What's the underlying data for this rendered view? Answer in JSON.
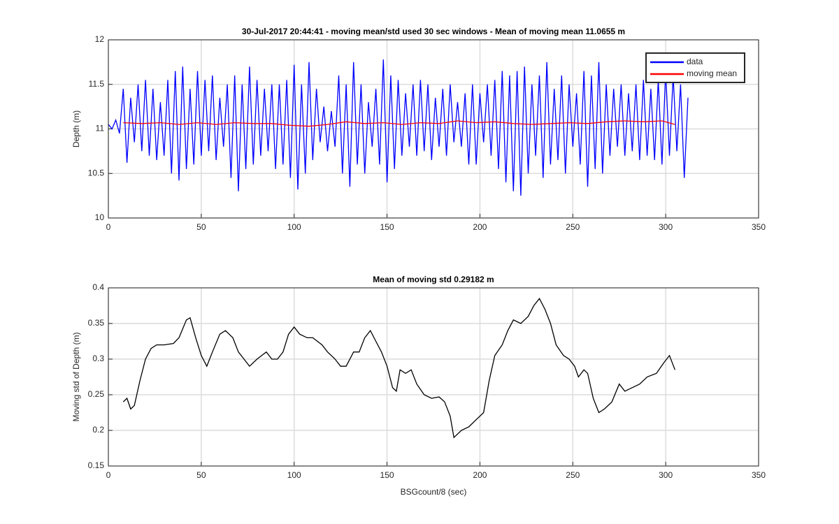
{
  "chart_data": [
    {
      "type": "line",
      "title": "30-Jul-2017 20:44:41 - moving mean/std used 30 sec windows - Mean of moving mean 11.0655 m",
      "y_label": "Depth (m)",
      "xlim": [
        0,
        350
      ],
      "xticks": [
        0,
        50,
        100,
        150,
        200,
        250,
        300,
        350
      ],
      "ylim": [
        10,
        12
      ],
      "yticks": [
        10,
        10.5,
        11,
        11.5,
        12
      ],
      "grid": true,
      "legend": "upper right",
      "series": [
        {
          "name": "data",
          "color": "#0000ff",
          "x": [
            0,
            2,
            4,
            6,
            8,
            10,
            12,
            14,
            16,
            18,
            20,
            22,
            24,
            26,
            28,
            30,
            32,
            34,
            36,
            38,
            40,
            42,
            44,
            46,
            48,
            50,
            52,
            54,
            56,
            58,
            60,
            62,
            64,
            66,
            68,
            70,
            72,
            74,
            76,
            78,
            80,
            82,
            84,
            86,
            88,
            90,
            92,
            94,
            96,
            98,
            100,
            102,
            104,
            106,
            108,
            110,
            112,
            114,
            116,
            118,
            120,
            122,
            124,
            126,
            128,
            130,
            132,
            134,
            136,
            138,
            140,
            142,
            144,
            146,
            148,
            150,
            152,
            154,
            156,
            158,
            160,
            162,
            164,
            166,
            168,
            170,
            172,
            174,
            176,
            178,
            180,
            182,
            184,
            186,
            188,
            190,
            192,
            194,
            196,
            198,
            200,
            202,
            204,
            206,
            208,
            210,
            212,
            214,
            216,
            218,
            220,
            222,
            224,
            226,
            228,
            230,
            232,
            234,
            236,
            238,
            240,
            242,
            244,
            246,
            248,
            250,
            252,
            254,
            256,
            258,
            260,
            262,
            264,
            266,
            268,
            270,
            272,
            274,
            276,
            278,
            280,
            282,
            284,
            286,
            288,
            290,
            292,
            294,
            296,
            298,
            300,
            302,
            304,
            306,
            308,
            310,
            312
          ],
          "values": [
            11.05,
            11.0,
            11.1,
            10.95,
            11.45,
            10.62,
            11.35,
            10.85,
            11.5,
            10.75,
            11.55,
            10.7,
            11.45,
            10.65,
            11.3,
            10.7,
            11.55,
            10.5,
            11.65,
            10.42,
            11.7,
            10.55,
            11.45,
            10.6,
            11.65,
            10.7,
            11.55,
            10.75,
            11.6,
            10.65,
            11.35,
            10.8,
            11.5,
            10.45,
            11.6,
            10.3,
            11.5,
            10.55,
            11.7,
            10.6,
            11.55,
            10.7,
            11.45,
            10.75,
            11.5,
            10.55,
            11.5,
            10.6,
            11.55,
            10.45,
            11.72,
            10.32,
            11.5,
            10.5,
            11.75,
            10.65,
            11.45,
            10.85,
            11.25,
            10.75,
            11.2,
            10.8,
            11.6,
            10.5,
            11.5,
            10.35,
            11.75,
            10.6,
            11.5,
            10.5,
            11.3,
            10.8,
            11.45,
            10.6,
            11.78,
            10.4,
            11.6,
            10.55,
            11.55,
            10.7,
            11.4,
            10.8,
            11.5,
            10.7,
            11.55,
            10.75,
            11.5,
            10.65,
            11.35,
            10.8,
            11.45,
            10.7,
            11.5,
            10.85,
            11.3,
            10.8,
            11.4,
            10.6,
            11.5,
            10.6,
            11.4,
            10.85,
            11.5,
            10.7,
            11.55,
            10.55,
            11.65,
            10.4,
            11.6,
            10.3,
            11.65,
            10.25,
            11.7,
            10.5,
            11.5,
            10.7,
            11.6,
            10.45,
            11.75,
            10.6,
            11.45,
            10.65,
            11.6,
            10.5,
            11.5,
            10.8,
            11.4,
            10.6,
            11.65,
            10.35,
            11.6,
            10.55,
            11.75,
            10.5,
            11.5,
            10.7,
            11.45,
            10.8,
            11.5,
            10.7,
            11.4,
            10.75,
            11.5,
            10.65,
            11.55,
            10.7,
            11.45,
            10.65,
            11.55,
            10.6,
            11.65,
            10.7,
            11.6,
            10.75,
            11.5,
            10.45,
            11.35
          ]
        },
        {
          "name": "moving mean",
          "color": "#ff0000",
          "x": [
            8,
            18,
            28,
            38,
            48,
            58,
            68,
            78,
            88,
            98,
            108,
            118,
            128,
            138,
            148,
            158,
            168,
            178,
            188,
            198,
            208,
            218,
            228,
            238,
            248,
            258,
            268,
            278,
            288,
            298,
            305
          ],
          "values": [
            11.07,
            11.06,
            11.07,
            11.05,
            11.07,
            11.05,
            11.07,
            11.06,
            11.06,
            11.04,
            11.03,
            11.05,
            11.08,
            11.06,
            11.07,
            11.05,
            11.07,
            11.06,
            11.09,
            11.07,
            11.08,
            11.06,
            11.05,
            11.06,
            11.07,
            11.06,
            11.08,
            11.09,
            11.08,
            11.09,
            11.05
          ]
        }
      ]
    },
    {
      "type": "line",
      "title": "Mean of moving std 0.29182 m",
      "x_label": "BSGcount/8 (sec)",
      "y_label": "Moving std of Depth (m)",
      "xlim": [
        0,
        350
      ],
      "xticks": [
        0,
        50,
        100,
        150,
        200,
        250,
        300,
        350
      ],
      "ylim": [
        0.15,
        0.4
      ],
      "yticks": [
        0.15,
        0.2,
        0.25,
        0.3,
        0.35,
        0.4
      ],
      "grid": true,
      "series": [
        {
          "color": "#000000",
          "x": [
            8,
            10,
            12,
            14,
            17,
            20,
            23,
            26,
            30,
            35,
            38,
            42,
            44,
            47,
            50,
            53,
            56,
            60,
            63,
            67,
            70,
            73,
            76,
            80,
            85,
            88,
            91,
            94,
            97,
            100,
            103,
            107,
            110,
            115,
            118,
            122,
            125,
            128,
            132,
            135,
            138,
            141,
            144,
            147,
            150,
            153,
            155,
            157,
            160,
            163,
            166,
            170,
            174,
            178,
            181,
            184,
            186,
            190,
            194,
            198,
            202,
            205,
            208,
            212,
            215,
            218,
            222,
            226,
            229,
            232,
            235,
            238,
            241,
            245,
            248,
            251,
            253,
            256,
            258,
            261,
            264,
            267,
            271,
            275,
            278,
            282,
            286,
            290,
            295,
            299,
            302,
            305
          ],
          "values": [
            0.24,
            0.245,
            0.23,
            0.235,
            0.27,
            0.3,
            0.315,
            0.32,
            0.32,
            0.322,
            0.33,
            0.355,
            0.358,
            0.33,
            0.305,
            0.29,
            0.31,
            0.335,
            0.34,
            0.33,
            0.31,
            0.3,
            0.29,
            0.3,
            0.31,
            0.3,
            0.3,
            0.31,
            0.335,
            0.345,
            0.335,
            0.33,
            0.33,
            0.32,
            0.31,
            0.3,
            0.29,
            0.29,
            0.31,
            0.31,
            0.33,
            0.34,
            0.325,
            0.31,
            0.29,
            0.26,
            0.255,
            0.285,
            0.28,
            0.285,
            0.265,
            0.25,
            0.245,
            0.247,
            0.24,
            0.22,
            0.19,
            0.2,
            0.205,
            0.215,
            0.225,
            0.27,
            0.305,
            0.32,
            0.34,
            0.355,
            0.35,
            0.36,
            0.375,
            0.385,
            0.37,
            0.35,
            0.32,
            0.305,
            0.3,
            0.29,
            0.275,
            0.285,
            0.28,
            0.245,
            0.225,
            0.23,
            0.24,
            0.265,
            0.255,
            0.26,
            0.265,
            0.275,
            0.28,
            0.295,
            0.305,
            0.285
          ]
        }
      ]
    }
  ]
}
